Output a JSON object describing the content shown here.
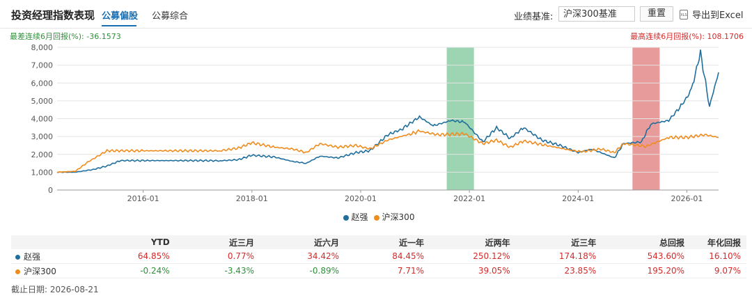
{
  "header": {
    "title": "投资经理指数表现",
    "tabs": [
      {
        "label": "公募偏股",
        "active": true
      },
      {
        "label": "公募综合",
        "active": false
      }
    ],
    "benchmark_label": "业绩基准:",
    "benchmark_value": "沪深300基准",
    "reset_label": "重置",
    "export_label": "导出到Excel",
    "excel_icon": "excel-file-icon"
  },
  "summary": {
    "worst": "最差连续6月回报(%): -36.1573",
    "best": "最高连续6月回报(%): 108.1706"
  },
  "chart_data": {
    "type": "line",
    "x_range": [
      "2014-06",
      "2026-08"
    ],
    "ylim": [
      0,
      8000
    ],
    "yticks": [
      "0",
      "1,000",
      "2,000",
      "3,000",
      "4,000",
      "5,000",
      "6,000",
      "7,000",
      "8,000"
    ],
    "xticks": [
      "2016-01",
      "2018-01",
      "2020-01",
      "2022-01",
      "2024-01",
      "2026-01"
    ],
    "grid": true,
    "legend_position": "bottom",
    "highlights": [
      {
        "from": "2021-08",
        "to": "2022-02",
        "color": "#7cc799"
      },
      {
        "from": "2025-01",
        "to": "2025-07",
        "color": "#e07a7a"
      }
    ],
    "series": [
      {
        "name": "赵强",
        "color": "#1f6e9c",
        "points": [
          [
            "2014-06",
            1000
          ],
          [
            "2014-10",
            1000
          ],
          [
            "2015-02",
            1150
          ],
          [
            "2015-05",
            1350
          ],
          [
            "2015-08",
            1650
          ],
          [
            "2016-01",
            1650
          ],
          [
            "2017-01",
            1650
          ],
          [
            "2017-06",
            1640
          ],
          [
            "2017-10",
            1700
          ],
          [
            "2018-01",
            1950
          ],
          [
            "2018-06",
            1850
          ],
          [
            "2018-10",
            1600
          ],
          [
            "2019-01",
            1500
          ],
          [
            "2019-04",
            1900
          ],
          [
            "2019-08",
            1800
          ],
          [
            "2019-12",
            2100
          ],
          [
            "2020-03",
            2200
          ],
          [
            "2020-07",
            3100
          ],
          [
            "2020-10",
            3400
          ],
          [
            "2021-02",
            4100
          ],
          [
            "2021-05",
            3600
          ],
          [
            "2021-09",
            3900
          ],
          [
            "2021-12",
            3800
          ],
          [
            "2022-04",
            2700
          ],
          [
            "2022-07",
            3500
          ],
          [
            "2022-10",
            2900
          ],
          [
            "2023-01",
            3500
          ],
          [
            "2023-05",
            2800
          ],
          [
            "2023-09",
            2500
          ],
          [
            "2024-01",
            2100
          ],
          [
            "2024-04",
            2300
          ],
          [
            "2024-09",
            1800
          ],
          [
            "2024-11",
            2600
          ],
          [
            "2025-03",
            2700
          ],
          [
            "2025-05",
            3700
          ],
          [
            "2025-09",
            3900
          ],
          [
            "2025-12",
            4800
          ],
          [
            "2026-02",
            5600
          ],
          [
            "2026-04",
            7700
          ],
          [
            "2026-06",
            4700
          ],
          [
            "2026-08",
            6600
          ]
        ]
      },
      {
        "name": "沪深300",
        "color": "#f08c1e",
        "points": [
          [
            "2014-06",
            1000
          ],
          [
            "2014-10",
            1050
          ],
          [
            "2015-01",
            1600
          ],
          [
            "2015-05",
            2200
          ],
          [
            "2015-08",
            2200
          ],
          [
            "2016-01",
            2200
          ],
          [
            "2017-06",
            2200
          ],
          [
            "2017-10",
            2350
          ],
          [
            "2018-01",
            2650
          ],
          [
            "2018-06",
            2400
          ],
          [
            "2018-10",
            2300
          ],
          [
            "2019-01",
            2100
          ],
          [
            "2019-04",
            2600
          ],
          [
            "2019-08",
            2400
          ],
          [
            "2019-12",
            2500
          ],
          [
            "2020-03",
            2300
          ],
          [
            "2020-07",
            2800
          ],
          [
            "2020-12",
            3150
          ],
          [
            "2021-02",
            3300
          ],
          [
            "2021-06",
            3100
          ],
          [
            "2021-12",
            3150
          ],
          [
            "2022-04",
            2600
          ],
          [
            "2022-07",
            2800
          ],
          [
            "2022-10",
            2400
          ],
          [
            "2023-01",
            2750
          ],
          [
            "2023-06",
            2500
          ],
          [
            "2023-12",
            2200
          ],
          [
            "2024-02",
            2150
          ],
          [
            "2024-06",
            2300
          ],
          [
            "2024-09",
            2100
          ],
          [
            "2024-11",
            2600
          ],
          [
            "2025-04",
            2450
          ],
          [
            "2025-09",
            2950
          ],
          [
            "2026-01",
            2950
          ],
          [
            "2026-05",
            3100
          ],
          [
            "2026-08",
            2950
          ]
        ]
      }
    ]
  },
  "table": {
    "headers": [
      "",
      "YTD",
      "近三月",
      "近六月",
      "近一年",
      "近两年",
      "近三年",
      "总回报",
      "年化回报"
    ],
    "rows": [
      {
        "name": "赵强",
        "color": "#1f6e9c",
        "values": [
          "64.85%",
          "0.77%",
          "34.42%",
          "84.45%",
          "250.12%",
          "174.18%",
          "543.60%",
          "16.10%"
        ]
      },
      {
        "name": "沪深300",
        "color": "#f08c1e",
        "values": [
          "-0.24%",
          "-3.43%",
          "-0.89%",
          "7.71%",
          "39.05%",
          "23.85%",
          "195.20%",
          "9.07%"
        ]
      }
    ]
  },
  "footer": {
    "cutoff": "截止日期: 2026-08-21"
  }
}
